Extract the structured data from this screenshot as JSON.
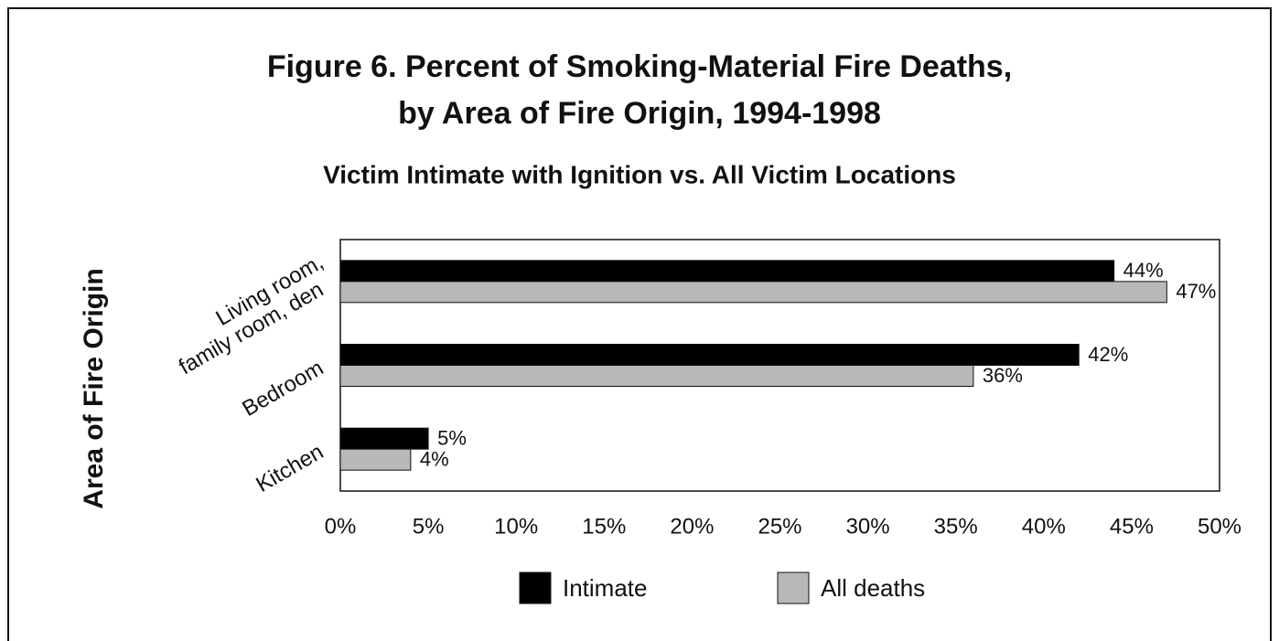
{
  "chart_data": {
    "type": "barh",
    "title": [
      "Figure 6.  Percent of Smoking-Material Fire Deaths,",
      "by Area of Fire Origin, 1994-1998"
    ],
    "subtitle": "Victim Intimate with Ignition vs. All Victim Locations",
    "y_label": "Area of Fire Origin",
    "categories": [
      [
        "Living room,",
        "family room, den"
      ],
      "Bedroom",
      "Kitchen"
    ],
    "series": [
      {
        "name": "Intimate",
        "color": "#000000",
        "values": [
          44,
          42,
          5
        ],
        "value_labels": [
          "44%",
          "42%",
          "5%"
        ]
      },
      {
        "name": "All deaths",
        "color": "#b8b8b8",
        "values": [
          47,
          36,
          4
        ],
        "value_labels": [
          "47%",
          "36%",
          "4%"
        ]
      }
    ],
    "xlim": [
      0,
      50
    ],
    "xticks": [
      {
        "value": 0,
        "label": "0%"
      },
      {
        "value": 5,
        "label": "5%"
      },
      {
        "value": 10,
        "label": "10%"
      },
      {
        "value": 15,
        "label": "15%"
      },
      {
        "value": 20,
        "label": "20%"
      },
      {
        "value": 25,
        "label": "25%"
      },
      {
        "value": 30,
        "label": "30%"
      },
      {
        "value": 35,
        "label": "35%"
      },
      {
        "value": 40,
        "label": "40%"
      },
      {
        "value": 45,
        "label": "45%"
      },
      {
        "value": 50,
        "label": "50%"
      }
    ],
    "legend": "bottom"
  }
}
